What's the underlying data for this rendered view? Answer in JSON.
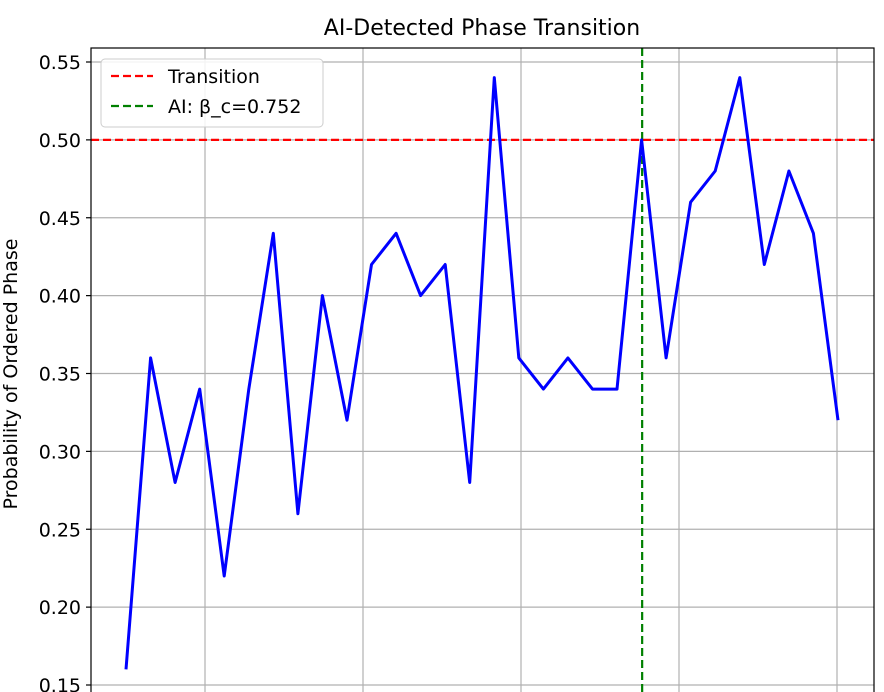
{
  "chart_data": {
    "type": "line",
    "title": "AI-Detected Phase Transition",
    "xlabel": "",
    "ylabel": "Probability of Ordered Phase",
    "ylim": [
      0.15,
      0.56
    ],
    "yticks": [
      "0.15",
      "0.20",
      "0.25",
      "0.30",
      "0.35",
      "0.40",
      "0.45",
      "0.50",
      "0.55"
    ],
    "ytick_values": [
      0.15,
      0.2,
      0.25,
      0.3,
      0.35,
      0.4,
      0.45,
      0.5,
      0.55
    ],
    "grid": true,
    "legend_placement": "top-left",
    "series": [
      {
        "color": "#0000ff",
        "values": [
          0.16,
          0.36,
          0.28,
          0.34,
          0.22,
          0.34,
          0.44,
          0.26,
          0.4,
          0.32,
          0.42,
          0.44,
          0.4,
          0.42,
          0.28,
          0.54,
          0.36,
          0.34,
          0.36,
          0.34,
          0.34,
          0.5,
          0.36,
          0.46,
          0.48,
          0.54,
          0.42,
          0.48,
          0.44,
          0.32
        ]
      }
    ],
    "reference_lines": [
      {
        "orientation": "horizontal",
        "value": 0.5,
        "color": "#ff0000",
        "style": "dashed",
        "label": "Transition"
      },
      {
        "orientation": "vertical",
        "at_index": 21,
        "color": "#008000",
        "style": "dashed",
        "label": "AI: β_c=0.752"
      }
    ]
  }
}
